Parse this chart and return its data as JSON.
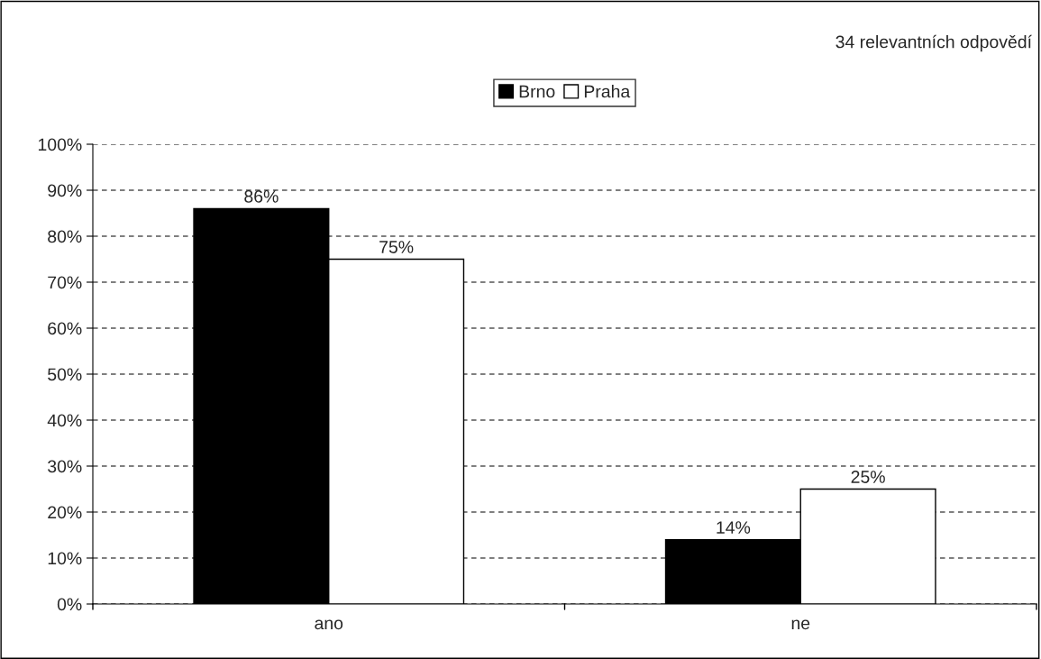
{
  "chart_data": {
    "type": "bar",
    "categories": [
      "ano",
      "ne"
    ],
    "series": [
      {
        "name": "Brno",
        "color": "#000000",
        "values": [
          86,
          14
        ],
        "value_labels": [
          "86%",
          "14%"
        ]
      },
      {
        "name": "Praha",
        "color": "#ffffff",
        "values": [
          75,
          25
        ],
        "value_labels": [
          "75%",
          "25%"
        ]
      }
    ],
    "ylim": [
      0,
      100
    ],
    "yticks": [
      {
        "value": 0,
        "label": "0%"
      },
      {
        "value": 10,
        "label": "10%"
      },
      {
        "value": 20,
        "label": "20%"
      },
      {
        "value": 30,
        "label": "30%"
      },
      {
        "value": 40,
        "label": "40%"
      },
      {
        "value": 50,
        "label": "50%"
      },
      {
        "value": 60,
        "label": "60%"
      },
      {
        "value": 70,
        "label": "70%"
      },
      {
        "value": 80,
        "label": "80%"
      },
      {
        "value": 90,
        "label": "90%"
      },
      {
        "value": 100,
        "label": "100%"
      }
    ],
    "grid": "y",
    "legend": "top",
    "annotations": [
      "34 relevantních odpovědí"
    ]
  }
}
